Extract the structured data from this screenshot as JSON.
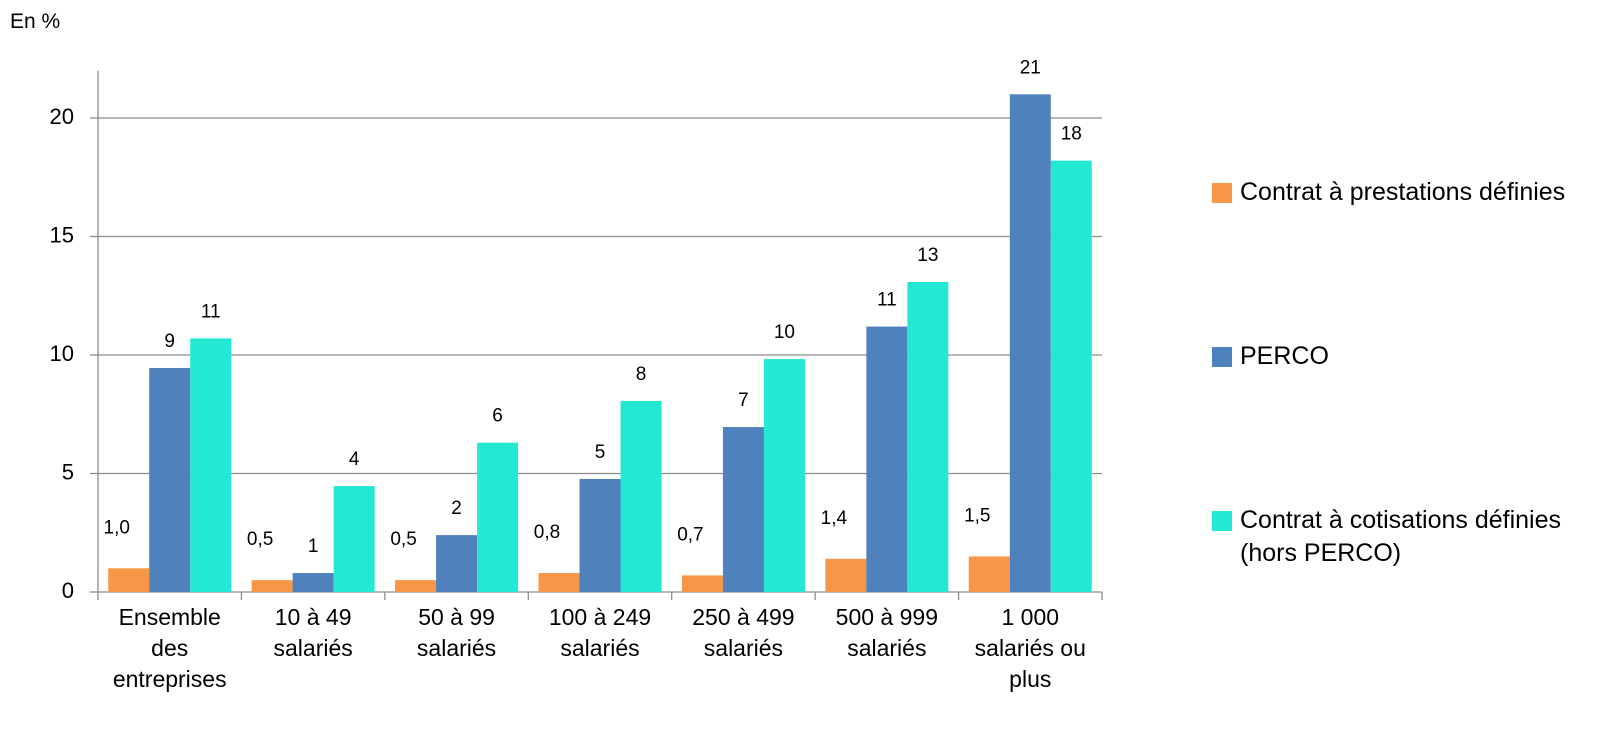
{
  "chart_data": {
    "type": "bar",
    "y_label": "En %",
    "categories": [
      "Ensemble des entreprises",
      "10 à 49 salariés",
      "50 à 99 salariés",
      "100 à 249 salariés",
      "250 à 499 salariés",
      "500 à 999 salariés",
      "1 000 salariés ou plus"
    ],
    "series": [
      {
        "name": "Contrat à prestations définies",
        "color": "#f79646",
        "values": [
          1.0,
          0.5,
          0.5,
          0.8,
          0.7,
          1.4,
          1.5
        ],
        "value_labels": [
          "1,0",
          "0,5",
          "0,5",
          "0,8",
          "0,7",
          "1,4",
          "1,5"
        ]
      },
      {
        "name": "PERCO",
        "color": "#4f81bd",
        "values": [
          9.45,
          0.8,
          2.4,
          4.77,
          6.96,
          11.2,
          21.0
        ],
        "value_labels": [
          "9",
          "1",
          "2",
          "5",
          "7",
          "11",
          "21"
        ]
      },
      {
        "name": "Contrat à cotisations définies (hors PERCO)",
        "color": "#23e8d4",
        "values": [
          10.7,
          4.47,
          6.3,
          8.06,
          9.83,
          13.08,
          18.2
        ],
        "value_labels": [
          "11",
          "4",
          "6",
          "8",
          "10",
          "13",
          "18"
        ]
      }
    ],
    "ylim": [
      0,
      22
    ],
    "yticks": [
      0,
      5,
      10,
      15,
      20
    ],
    "grid": true,
    "legend": "right"
  }
}
